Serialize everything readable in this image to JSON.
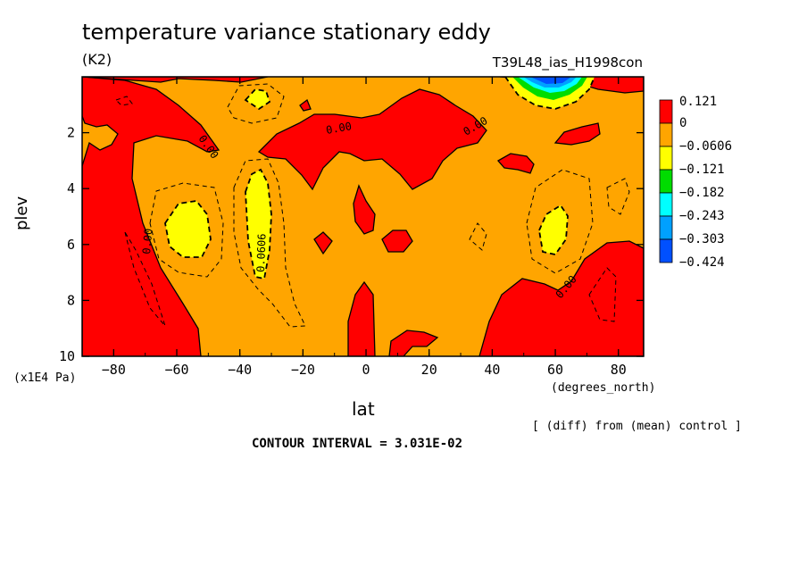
{
  "title": "temperature variance stationary eddy",
  "units": "(K2)",
  "run_id": "T39L48_ias_H1998con",
  "colors": {
    "red": "#ff0000",
    "orange": "#ffa500",
    "yellow": "#ffff00",
    "green": "#00dc00",
    "cyan": "#00ffff",
    "sky": "#00a0ff",
    "blue": "#0050ff",
    "background": "#ffffff"
  },
  "chart_data": {
    "type": "contour",
    "xlabel": "lat",
    "xunit": "(degrees_north)",
    "ylabel": "plev",
    "yunit": "(x1E4 Pa)",
    "xlim": [
      -90,
      88
    ],
    "ylim": [
      10,
      0
    ],
    "x_ticks": [
      "-80",
      "-60",
      "-40",
      "-20",
      "0",
      "20",
      "40",
      "60",
      "80"
    ],
    "y_ticks": [
      "2",
      "4",
      "6",
      "8",
      "10"
    ],
    "colorbar_levels": [
      "0.121",
      "0",
      "-0.0606",
      "-0.121",
      "-0.182",
      "-0.243",
      "-0.303",
      "-0.424"
    ],
    "contour_labels": [
      "0.00",
      "0.00",
      "0.00",
      "0.00",
      "0.00",
      "0.0606",
      "0.00"
    ],
    "contour_interval_text": "CONTOUR INTERVAL = 3.031E-02",
    "note": "[ (diff) from (mean) control ]",
    "regions": [
      {
        "value_range": "> 0",
        "color": "red",
        "location": "southern high latitudes (-90 to -65), 2-10"
      },
      {
        "value_range": "> 0",
        "color": "red",
        "location": "northern high latitudes (45 to 88), 7-10"
      },
      {
        "value_range": "> 0",
        "color": "red",
        "location": "upper troposphere -20 to 35, 1-4"
      },
      {
        "value_range": "-0.0606 to -0.121",
        "color": "yellow",
        "location": "-60, 5-6"
      },
      {
        "value_range": "-0.0606 to -0.121",
        "color": "yellow",
        "location": "-35, 4-7"
      },
      {
        "value_range": "-0.0606 to -0.121",
        "color": "yellow",
        "location": "60, 5-6"
      },
      {
        "value_range": "< -0.424",
        "color": "blue",
        "location": "near top, 55 to 70"
      }
    ]
  }
}
